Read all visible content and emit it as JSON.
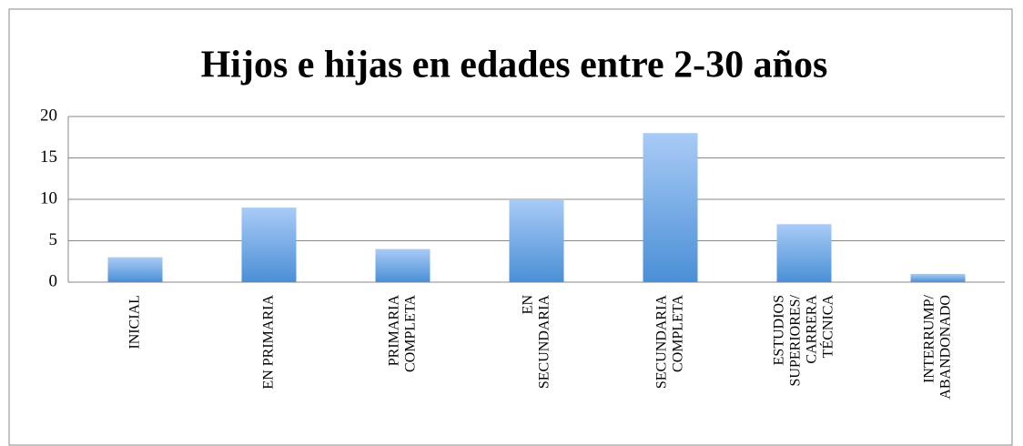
{
  "chart_data": {
    "type": "bar",
    "title": "Hijos e hijas en edades entre 2-30 años",
    "categories": [
      "INICIAL",
      "EN PRIMARIA",
      "PRIMARIA\nCOMPLETA",
      "EN\nSECUNDARIA",
      "SECUNDARIA\nCOMPLETA",
      "ESTUDIOS\nSUPERIORES/\nCARRERA\nTÉCNICA",
      "INTERRUMP/\nABANDONADO"
    ],
    "values": [
      3,
      9,
      4,
      10,
      18,
      7,
      1
    ],
    "color": "#4a8fd6",
    "ylim": [
      0,
      20
    ],
    "yticks": [
      0,
      5,
      10,
      15,
      20
    ],
    "grid": true
  }
}
